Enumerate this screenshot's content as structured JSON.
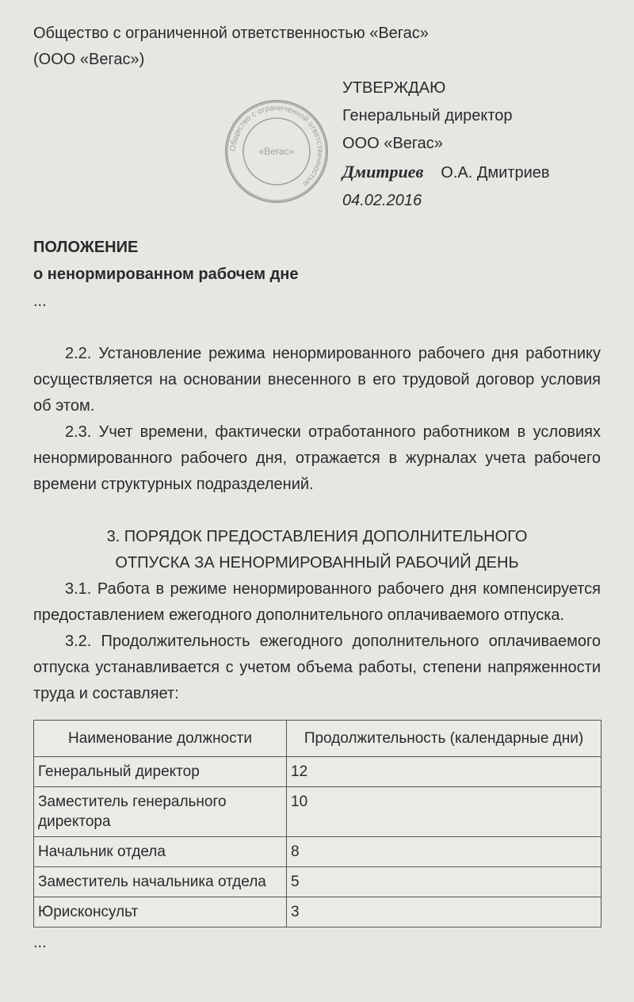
{
  "org": {
    "line1": "Общество с ограниченной ответственностью «Вегас»",
    "line2": "(ООО «Вегас»)"
  },
  "approval": {
    "heading": "УТВЕРЖДАЮ",
    "position": "Генеральный директор",
    "company": "ООО «Вегас»",
    "signature": "Дмитриев",
    "name": "О.А. Дмитриев",
    "date": "04.02.2016"
  },
  "stamp": {
    "ring_text": "Общество с ограниченной ответственностью",
    "center": "«Вегас»"
  },
  "doc": {
    "title": "ПОЛОЖЕНИЕ",
    "subtitle": "о ненормированном рабочем дне",
    "ellipsis1": "...",
    "p22": "2.2. Установление режима ненормированного рабочего дня работнику осуществляется на основании внесенного в его трудовой договор условия об этом.",
    "p23": "2.3. Учет времени, фактически отработанного работником в условиях ненормированного рабочего дня, отражается в журналах учета рабочего времени структурных подразделений.",
    "section3_line1": "3. ПОРЯДОК ПРЕДОСТАВЛЕНИЯ ДОПОЛНИТЕЛЬНОГО",
    "section3_line2": "ОТПУСКА ЗА НЕНОРМИРОВАННЫЙ РАБОЧИЙ ДЕНЬ",
    "p31": "3.1. Работа в режиме ненормированного рабочего дня компенсируется предоставлением ежегодного дополнительного оплачиваемого отпуска.",
    "p32": "3.2. Продолжительность ежегодного дополнительного оплачиваемого отпуска устанавливается с учетом объема работы, степени напряженности труда и составляет:",
    "ellipsis2": "..."
  },
  "table": {
    "headers": [
      "Наименование должности",
      "Продолжительность (календарные дни)"
    ],
    "rows": [
      [
        "Генеральный директор",
        "12"
      ],
      [
        "Заместитель генераль­ного директора",
        "10"
      ],
      [
        "Начальник отдела",
        "8"
      ],
      [
        "Заместитель на­чальника отдела",
        "5"
      ],
      [
        "Юрисконсульт",
        "3"
      ]
    ]
  }
}
